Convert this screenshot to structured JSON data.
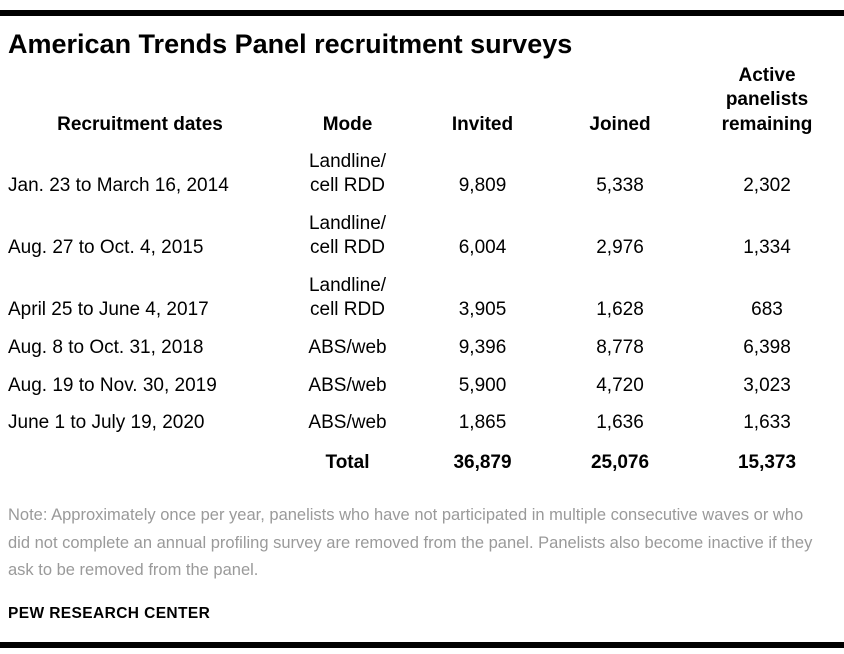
{
  "page": {
    "title": "American Trends Panel recruitment surveys",
    "note": "Note: Approximately once per year, panelists who have not participated in multiple consecutive waves or who did not complete an annual profiling survey are removed from the panel. Panelists also become inactive if they ask to be removed from the panel.",
    "source": "PEW RESEARCH CENTER"
  },
  "colors": {
    "rule": "#000000",
    "note_gray": "#9a9a9a",
    "text": "#000000"
  },
  "chart_data": {
    "type": "table",
    "title": "American Trends Panel recruitment surveys",
    "columns": [
      "Recruitment dates",
      "Mode",
      "Invited",
      "Joined",
      "Active\npanelists\nremaining"
    ],
    "rows": [
      {
        "dates": "Jan. 23 to March 16, 2014",
        "mode": "Landline/\ncell RDD",
        "invited": "9,809",
        "joined": "5,338",
        "active": "2,302"
      },
      {
        "dates": "Aug. 27 to Oct. 4, 2015",
        "mode": "Landline/\ncell RDD",
        "invited": "6,004",
        "joined": "2,976",
        "active": "1,334"
      },
      {
        "dates": "April 25 to June 4, 2017",
        "mode": "Landline/\ncell RDD",
        "invited": "3,905",
        "joined": "1,628",
        "active": "683"
      },
      {
        "dates": "Aug. 8 to Oct. 31, 2018",
        "mode": "ABS/web",
        "invited": "9,396",
        "joined": "8,778",
        "active": "6,398"
      },
      {
        "dates": "Aug. 19 to Nov. 30, 2019",
        "mode": "ABS/web",
        "invited": "5,900",
        "joined": "4,720",
        "active": "3,023"
      },
      {
        "dates": "June 1 to July 19, 2020",
        "mode": "ABS/web",
        "invited": "1,865",
        "joined": "1,636",
        "active": "1,633"
      }
    ],
    "total": {
      "label": "Total",
      "invited": "36,879",
      "joined": "25,076",
      "active": "15,373"
    }
  }
}
